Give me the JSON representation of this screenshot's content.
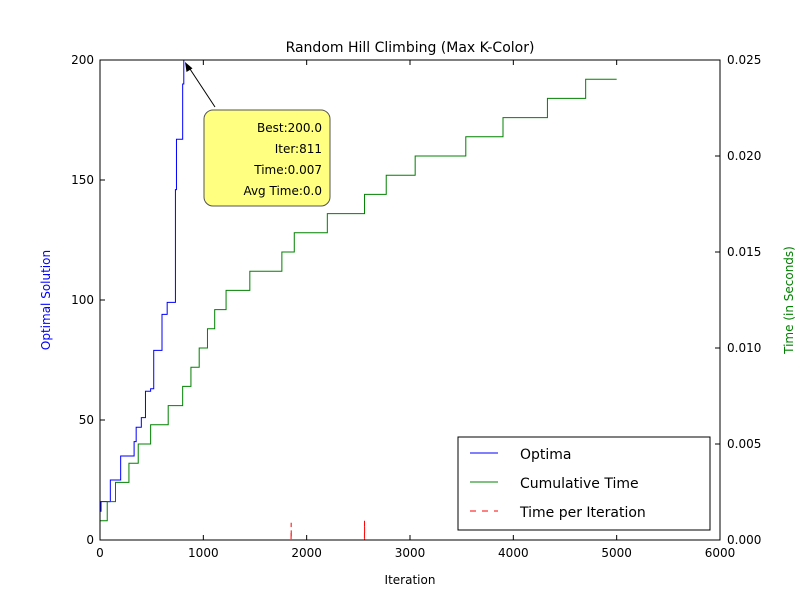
{
  "chart_data": {
    "type": "line",
    "title": "Random Hill Climbing (Max K-Color)",
    "xlabel": "Iteration",
    "ylabel_left": "Optimal Solution",
    "ylabel_right": "Time (in Seconds)",
    "xlim": [
      0,
      6000
    ],
    "ylim_left": [
      0,
      200
    ],
    "ylim_right": [
      0,
      0.025
    ],
    "x_ticks": [
      "0",
      "1000",
      "2000",
      "3000",
      "4000",
      "5000",
      "6000"
    ],
    "y_left_ticks": [
      "0",
      "50",
      "100",
      "150",
      "200"
    ],
    "y_right_ticks": [
      "0.000",
      "0.005",
      "0.010",
      "0.015",
      "0.020",
      "0.025"
    ],
    "grid": false,
    "legend_position": "lower-right",
    "colors": {
      "optima": "#0000ff",
      "cumulative": "#008000",
      "per_iteration": "#ff0000",
      "annotation_fill": "#ffff80"
    },
    "series": [
      {
        "name": "Optima",
        "axis": "left",
        "style": "solid",
        "points": [
          [
            0,
            12
          ],
          [
            10,
            12
          ],
          [
            10,
            16
          ],
          [
            100,
            16
          ],
          [
            100,
            25
          ],
          [
            200,
            25
          ],
          [
            200,
            35
          ],
          [
            330,
            35
          ],
          [
            330,
            41
          ],
          [
            350,
            41
          ],
          [
            350,
            47
          ],
          [
            400,
            47
          ],
          [
            400,
            51
          ],
          [
            440,
            51
          ],
          [
            440,
            62
          ],
          [
            490,
            62
          ],
          [
            490,
            63
          ],
          [
            520,
            63
          ],
          [
            520,
            79
          ],
          [
            600,
            79
          ],
          [
            600,
            94
          ],
          [
            650,
            94
          ],
          [
            650,
            99
          ],
          [
            730,
            99
          ],
          [
            730,
            146
          ],
          [
            740,
            146
          ],
          [
            740,
            167
          ],
          [
            800,
            167
          ],
          [
            800,
            190
          ],
          [
            811,
            190
          ],
          [
            811,
            200
          ],
          [
            5000,
            200
          ]
        ]
      },
      {
        "name": "Cumulative Time",
        "axis": "right",
        "style": "solid",
        "points": [
          [
            0,
            0.001
          ],
          [
            70,
            0.001
          ],
          [
            70,
            0.002
          ],
          [
            150,
            0.002
          ],
          [
            150,
            0.003
          ],
          [
            280,
            0.003
          ],
          [
            280,
            0.004
          ],
          [
            370,
            0.004
          ],
          [
            370,
            0.005
          ],
          [
            490,
            0.005
          ],
          [
            490,
            0.006
          ],
          [
            660,
            0.006
          ],
          [
            660,
            0.007
          ],
          [
            800,
            0.007
          ],
          [
            800,
            0.008
          ],
          [
            880,
            0.008
          ],
          [
            880,
            0.009
          ],
          [
            960,
            0.009
          ],
          [
            960,
            0.01
          ],
          [
            1040,
            0.01
          ],
          [
            1040,
            0.011
          ],
          [
            1110,
            0.011
          ],
          [
            1110,
            0.012
          ],
          [
            1220,
            0.012
          ],
          [
            1220,
            0.013
          ],
          [
            1450,
            0.013
          ],
          [
            1450,
            0.014
          ],
          [
            1760,
            0.014
          ],
          [
            1760,
            0.015
          ],
          [
            1880,
            0.015
          ],
          [
            1880,
            0.016
          ],
          [
            2200,
            0.016
          ],
          [
            2200,
            0.017
          ],
          [
            2560,
            0.017
          ],
          [
            2560,
            0.018
          ],
          [
            2770,
            0.018
          ],
          [
            2770,
            0.019
          ],
          [
            3050,
            0.019
          ],
          [
            3050,
            0.02
          ],
          [
            3540,
            0.02
          ],
          [
            3540,
            0.021
          ],
          [
            3900,
            0.021
          ],
          [
            3900,
            0.022
          ],
          [
            4330,
            0.022
          ],
          [
            4330,
            0.023
          ],
          [
            4700,
            0.023
          ],
          [
            4700,
            0.024
          ],
          [
            5000,
            0.024
          ]
        ]
      },
      {
        "name": "Time per Iteration",
        "axis": "right",
        "style": "dashed",
        "points": [
          [
            0,
            0
          ],
          [
            1849,
            0
          ],
          [
            1850,
            0.0009
          ],
          [
            1851,
            0
          ],
          [
            2559,
            0
          ],
          [
            2560,
            0.001
          ],
          [
            2561,
            0
          ],
          [
            5000,
            0
          ]
        ]
      }
    ],
    "annotation": {
      "lines": [
        "Best:200.0",
        "Iter:811",
        "Time:0.007",
        "Avg Time:0.0"
      ],
      "point": [
        811,
        200
      ]
    }
  }
}
